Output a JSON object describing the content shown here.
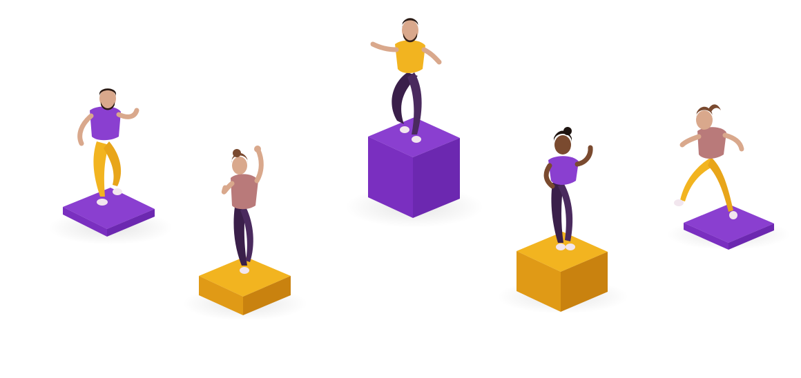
{
  "scene": {
    "background": "#ffffff",
    "palette": {
      "purple_top": "#8a3fd0",
      "purple_left": "#7a2fc0",
      "purple_right": "#6c28b0",
      "gold_top": "#f2b420",
      "gold_left": "#e09a16",
      "gold_right": "#c9820f",
      "pants_dark": "#3a1f4a",
      "shirt_yellow": "#f2b420",
      "shirt_purple": "#8a3fd0",
      "shirt_pink": "#b97a7a",
      "skin": "#d9a88c",
      "skin_dark": "#7a4a2f",
      "hair_dark": "#2a1a14",
      "hair_brown": "#7a4a30",
      "shoe": "#f2e6ee"
    },
    "figures": [
      {
        "name": "bearded-man-purple-shirt",
        "pedestal": "purple-slab"
      },
      {
        "name": "woman-pink-shirt-dark-pants",
        "pedestal": "gold-block"
      },
      {
        "name": "bearded-man-yellow-shirt",
        "pedestal": "purple-cube"
      },
      {
        "name": "woman-purple-shirt-dark-pants",
        "pedestal": "gold-block"
      },
      {
        "name": "woman-ponytail-pink-shirt",
        "pedestal": "purple-slab"
      }
    ]
  }
}
